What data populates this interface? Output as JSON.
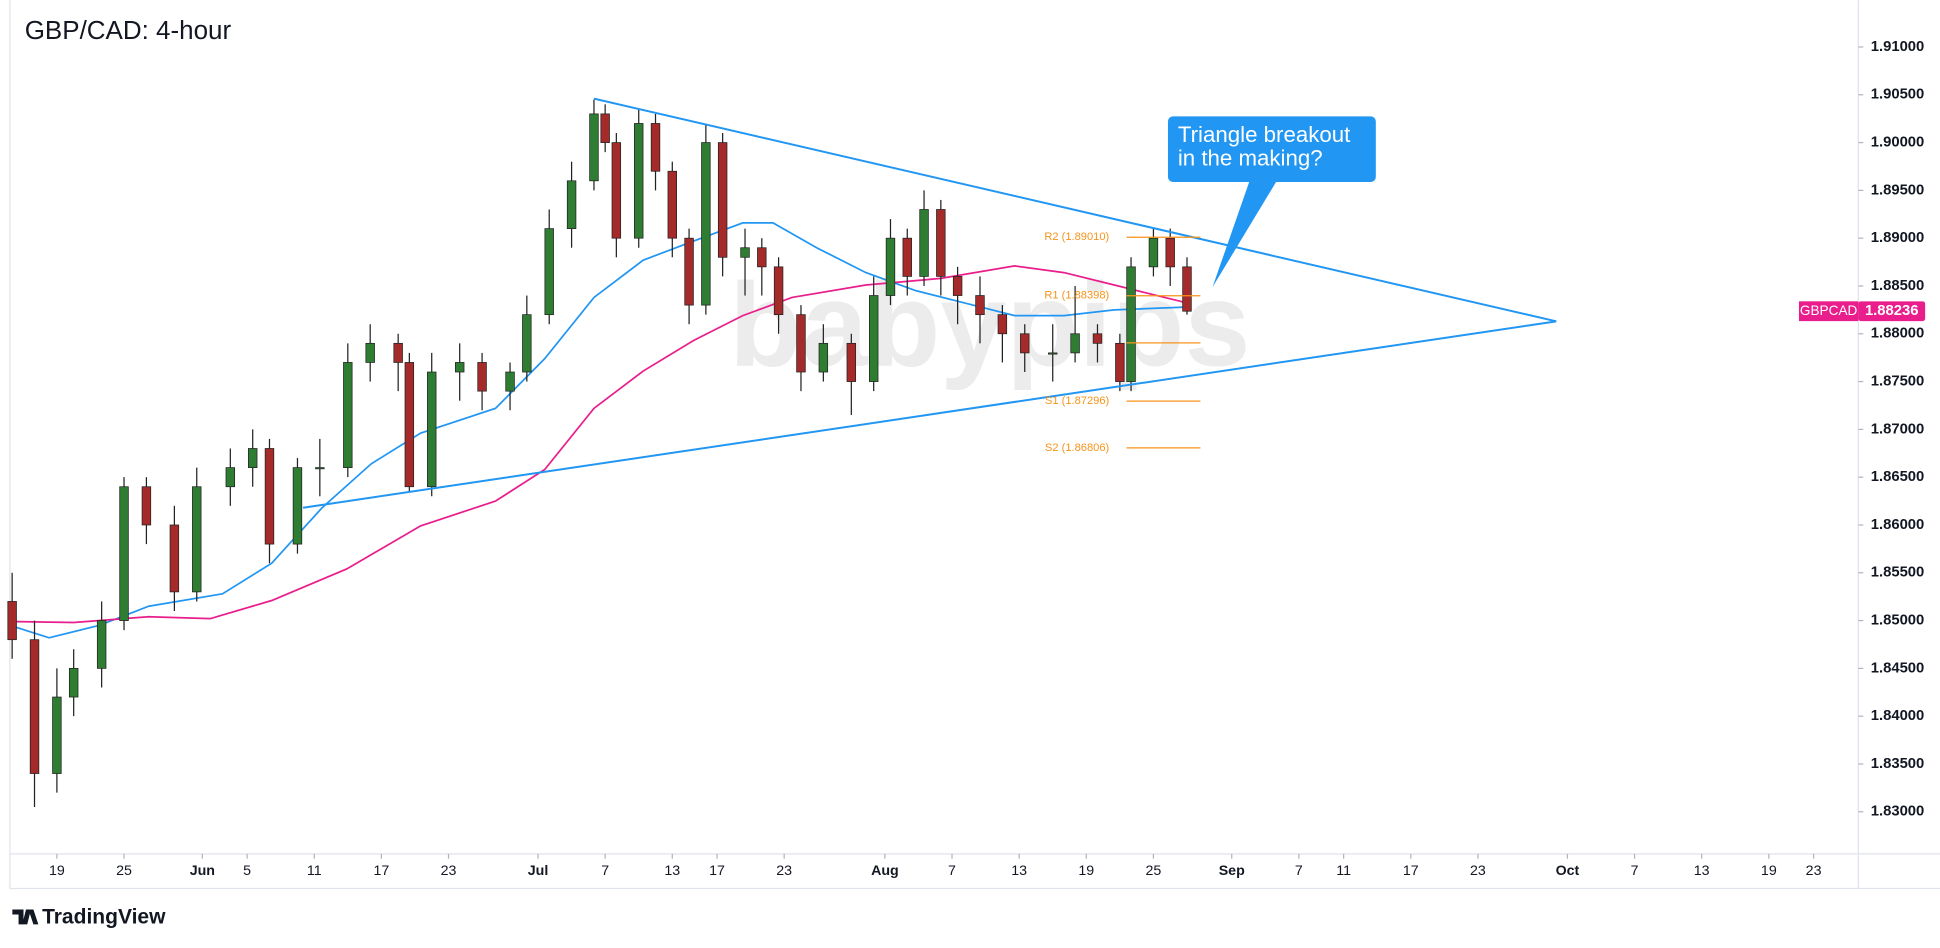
{
  "chart_data": {
    "type": "candlestick",
    "title": "GBP/CAD: 4-hour",
    "symbol": "GBPCAD",
    "last_price": 1.88236,
    "last_price_color": "#e91e8c",
    "watermark": "babypips",
    "brand": "TradingView",
    "annotation": {
      "lines": [
        "Triangle breakout",
        "in the making?"
      ],
      "color": "#2196f3"
    },
    "up_color": "#2e7d32",
    "down_color": "#a52a2a",
    "x": [
      14,
      16,
      18,
      19.5,
      22,
      24,
      26,
      28.5,
      30.5,
      33.5,
      35.5,
      37,
      39.5,
      41.5,
      44,
      46,
      48.5,
      49.5,
      51.5,
      54,
      56,
      58.5,
      60,
      62,
      64,
      66,
      67,
      68,
      70,
      71.5,
      73,
      74.5,
      76,
      77.5,
      79.5,
      81,
      82.5,
      84.5,
      86.5,
      89,
      91,
      92.5,
      94,
      95.5,
      97,
      98.5,
      100.5,
      102.5,
      104.5,
      107,
      109,
      111,
      113,
      114,
      116,
      117.5,
      119
    ],
    "open": [
      1.852,
      1.848,
      1.834,
      1.842,
      1.845,
      1.85,
      1.864,
      1.86,
      1.853,
      1.864,
      1.866,
      1.868,
      1.858,
      1.866,
      1.866,
      1.877,
      1.879,
      1.877,
      1.864,
      1.876,
      1.877,
      1.874,
      1.876,
      1.882,
      1.891,
      1.896,
      1.903,
      1.9,
      1.89,
      1.902,
      1.897,
      1.89,
      1.883,
      1.9,
      1.888,
      1.889,
      1.887,
      1.882,
      1.876,
      1.879,
      1.875,
      1.884,
      1.89,
      1.886,
      1.893,
      1.886,
      1.884,
      1.882,
      1.88,
      1.878,
      1.878,
      1.88,
      1.879,
      1.875,
      1.887,
      1.89,
      1.887
    ],
    "high": [
      1.855,
      1.85,
      1.845,
      1.847,
      1.852,
      1.865,
      1.865,
      1.862,
      1.866,
      1.868,
      1.87,
      1.869,
      1.867,
      1.869,
      1.879,
      1.881,
      1.88,
      1.878,
      1.878,
      1.879,
      1.878,
      1.877,
      1.884,
      1.893,
      1.898,
      1.9045,
      1.904,
      1.901,
      1.9035,
      1.903,
      1.898,
      1.891,
      1.902,
      1.901,
      1.891,
      1.89,
      1.888,
      1.883,
      1.881,
      1.88,
      1.886,
      1.892,
      1.891,
      1.895,
      1.894,
      1.887,
      1.886,
      1.883,
      1.881,
      1.881,
      1.885,
      1.881,
      1.88,
      1.888,
      1.891,
      1.891,
      1.888
    ],
    "low": [
      1.846,
      1.8305,
      1.832,
      1.84,
      1.843,
      1.849,
      1.858,
      1.851,
      1.852,
      1.862,
      1.864,
      1.856,
      1.857,
      1.863,
      1.865,
      1.875,
      1.874,
      1.8635,
      1.863,
      1.873,
      1.872,
      1.872,
      1.875,
      1.881,
      1.889,
      1.895,
      1.899,
      1.888,
      1.889,
      1.895,
      1.888,
      1.881,
      1.882,
      1.886,
      1.884,
      1.884,
      1.88,
      1.874,
      1.875,
      1.8715,
      1.874,
      1.883,
      1.884,
      1.885,
      1.884,
      1.881,
      1.879,
      1.877,
      1.876,
      1.875,
      1.877,
      1.877,
      1.874,
      1.874,
      1.886,
      1.885,
      1.882
    ],
    "close": [
      1.848,
      1.834,
      1.842,
      1.845,
      1.85,
      1.864,
      1.86,
      1.853,
      1.864,
      1.866,
      1.868,
      1.858,
      1.866,
      1.866,
      1.877,
      1.879,
      1.877,
      1.864,
      1.876,
      1.877,
      1.874,
      1.876,
      1.882,
      1.891,
      1.896,
      1.903,
      1.9,
      1.89,
      1.902,
      1.897,
      1.89,
      1.883,
      1.9,
      1.888,
      1.889,
      1.887,
      1.882,
      1.876,
      1.879,
      1.875,
      1.884,
      1.89,
      1.886,
      1.893,
      1.886,
      1.884,
      1.882,
      1.88,
      1.878,
      1.878,
      1.88,
      1.879,
      1.875,
      1.887,
      1.89,
      1.887,
      1.88236
    ],
    "lines": [
      {
        "color": "#2196f3",
        "x": [
          13.8,
          17.3,
          21.8,
          26.2,
          32.8,
          37.2,
          41.7,
          46.1,
          50.5,
          57.2,
          61.6,
          66,
          70.4,
          74.9,
          79.3,
          82,
          85.9,
          90.3,
          94.8,
          99.2,
          103.6,
          108,
          112.5,
          119.1
        ],
        "y": [
          1.8495,
          1.8482,
          1.8495,
          1.8515,
          1.8528,
          1.856,
          1.8618,
          1.8664,
          1.8696,
          1.8722,
          1.8774,
          1.8838,
          1.8877,
          1.8897,
          1.8916,
          1.8916,
          1.889,
          1.8864,
          1.8845,
          1.8832,
          1.8819,
          1.8819,
          1.8825,
          1.8828
        ]
      },
      {
        "color": "#e91e8c",
        "x": [
          13.8,
          19.5,
          26.2,
          31.7,
          37.2,
          43.9,
          50.5,
          57.2,
          61.6,
          66,
          70.4,
          74.9,
          79.3,
          83.7,
          90.3,
          97,
          103.6,
          108,
          112.5,
          119.1
        ],
        "y": [
          1.8499,
          1.8498,
          1.8504,
          1.8502,
          1.8521,
          1.8554,
          1.8599,
          1.8625,
          1.8658,
          1.8722,
          1.8761,
          1.8793,
          1.8819,
          1.8838,
          1.8851,
          1.8858,
          1.8871,
          1.8864,
          1.8851,
          1.8832
        ]
      }
    ],
    "trendlines": [
      {
        "color": "#2196f3",
        "x": [
          66,
          152
        ],
        "y": [
          1.9046,
          1.8813
        ]
      },
      {
        "color": "#2196f3",
        "x": [
          40,
          152
        ],
        "y": [
          1.8618,
          1.8813
        ]
      }
    ],
    "pivots": {
      "color": "#f7931a",
      "x": [
        113.6,
        120.2
      ],
      "levels": [
        {
          "value": 1.8901,
          "label": "R2 (1.89010)"
        },
        {
          "value": 1.88398,
          "label": "R1 (1.88398)"
        },
        {
          "value": 1.87905
        },
        {
          "value": 1.87296,
          "label": "S1 (1.87296)"
        },
        {
          "value": 1.86806,
          "label": "S2 (1.86806)"
        }
      ]
    },
    "xlim": [
      13.8,
      179
    ],
    "ylim": [
      1.8256,
      1.9149
    ],
    "xticks": [
      {
        "value": 18,
        "label": "19"
      },
      {
        "value": 24,
        "label": "25"
      },
      {
        "value": 31,
        "label": "Jun"
      },
      {
        "value": 35,
        "label": "5"
      },
      {
        "value": 41,
        "label": "11"
      },
      {
        "value": 47,
        "label": "17"
      },
      {
        "value": 53,
        "label": "23"
      },
      {
        "value": 61,
        "label": "Jul"
      },
      {
        "value": 67,
        "label": "7"
      },
      {
        "value": 73,
        "label": "13"
      },
      {
        "value": 77,
        "label": "17"
      },
      {
        "value": 83,
        "label": "23"
      },
      {
        "value": 92,
        "label": "Aug"
      },
      {
        "value": 98,
        "label": "7"
      },
      {
        "value": 104,
        "label": "13"
      },
      {
        "value": 110,
        "label": "19"
      },
      {
        "value": 116,
        "label": "25"
      },
      {
        "value": 123,
        "label": "Sep"
      },
      {
        "value": 129,
        "label": "7"
      },
      {
        "value": 133,
        "label": "11"
      },
      {
        "value": 139,
        "label": "17"
      },
      {
        "value": 145,
        "label": "23"
      },
      {
        "value": 153,
        "label": "Oct"
      },
      {
        "value": 159,
        "label": "7"
      },
      {
        "value": 165,
        "label": "13"
      },
      {
        "value": 171,
        "label": "19"
      },
      {
        "value": 175,
        "label": "23"
      }
    ],
    "yticks": [
      {
        "value": 1.83,
        "label": "1.83000"
      },
      {
        "value": 1.835,
        "label": "1.83500"
      },
      {
        "value": 1.84,
        "label": "1.84000"
      },
      {
        "value": 1.845,
        "label": "1.84500"
      },
      {
        "value": 1.85,
        "label": "1.85000"
      },
      {
        "value": 1.855,
        "label": "1.85500"
      },
      {
        "value": 1.86,
        "label": "1.86000"
      },
      {
        "value": 1.865,
        "label": "1.86500"
      },
      {
        "value": 1.87,
        "label": "1.87000"
      },
      {
        "value": 1.875,
        "label": "1.87500"
      },
      {
        "value": 1.88,
        "label": "1.88000"
      },
      {
        "value": 1.885,
        "label": "1.88500"
      },
      {
        "value": 1.89,
        "label": "1.89000"
      },
      {
        "value": 1.895,
        "label": "1.89500"
      },
      {
        "value": 1.9,
        "label": "1.90000"
      },
      {
        "value": 1.905,
        "label": "1.90500"
      },
      {
        "value": 1.91,
        "label": "1.91000"
      }
    ]
  }
}
